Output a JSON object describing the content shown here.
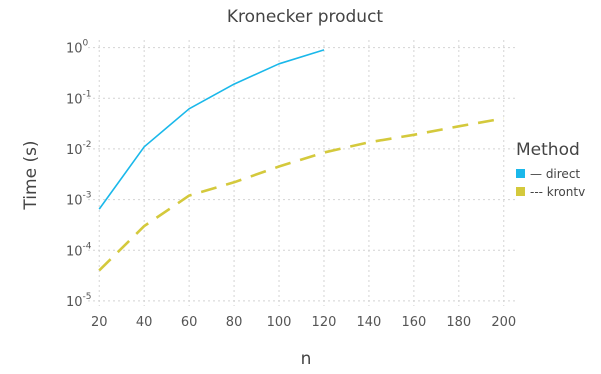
{
  "chart_data": {
    "type": "line",
    "title": "Kronecker product",
    "xlabel": "n",
    "ylabel": "Time (s)",
    "yscale": "log",
    "xlim": [
      15,
      205
    ],
    "ylim_exponent": [
      -5.1,
      0.15
    ],
    "grid": true,
    "x_ticks": [
      20,
      40,
      60,
      80,
      100,
      120,
      140,
      160,
      180,
      200
    ],
    "y_ticks": [
      {
        "base": "10",
        "exp": "-5",
        "value": 1e-05
      },
      {
        "base": "10",
        "exp": "-4",
        "value": 0.0001
      },
      {
        "base": "10",
        "exp": "-3",
        "value": 0.001
      },
      {
        "base": "10",
        "exp": "-2",
        "value": 0.01
      },
      {
        "base": "10",
        "exp": "-1",
        "value": 0.1
      },
      {
        "base": "10",
        "exp": "0",
        "value": 1
      }
    ],
    "legend": {
      "title": "Method",
      "placement": "right",
      "entries": [
        "— direct",
        "--- krontv"
      ]
    },
    "series": [
      {
        "name": "direct",
        "style": "solid",
        "color": "#1ab8ea",
        "x": [
          20,
          40,
          60,
          80,
          100,
          120
        ],
        "y": [
          0.00065,
          0.011,
          0.062,
          0.19,
          0.48,
          0.9
        ]
      },
      {
        "name": "krontv",
        "style": "dashed",
        "color": "#d4c93c",
        "x": [
          20,
          40,
          60,
          80,
          100,
          120,
          140,
          160,
          180,
          200
        ],
        "y": [
          4e-05,
          0.0003,
          0.0012,
          0.0022,
          0.0045,
          0.0085,
          0.0135,
          0.019,
          0.028,
          0.04
        ]
      }
    ]
  }
}
